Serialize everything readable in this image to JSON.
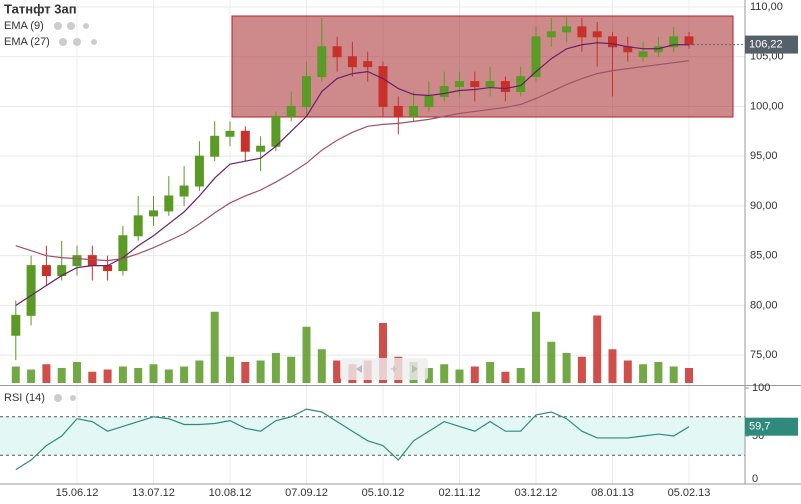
{
  "chart_data": [
    {
      "type": "candlestick",
      "title": "Татнфт 3ап",
      "categories": [
        null,
        null,
        null,
        null,
        "15.06.12",
        null,
        null,
        null,
        null,
        "13.07.12",
        null,
        null,
        null,
        null,
        "10.08.12",
        null,
        null,
        null,
        null,
        "07.09.12",
        null,
        null,
        null,
        null,
        "05.10.12",
        null,
        null,
        null,
        null,
        "02.11.12",
        null,
        null,
        null,
        null,
        "03.12.12",
        null,
        null,
        null,
        null,
        "08.01.13",
        null,
        null,
        null,
        null,
        "05.02.13"
      ],
      "open": [
        77,
        79,
        84,
        83,
        84,
        85,
        84,
        83.5,
        87,
        89,
        89.5,
        91,
        92,
        95,
        97,
        97.5,
        95.5,
        96,
        99,
        100,
        103,
        106,
        105,
        104.5,
        104,
        100,
        99,
        100,
        101,
        102,
        102.5,
        102,
        102.5,
        101.5,
        103,
        107,
        107.5,
        108,
        107.5,
        107,
        106,
        105,
        105.5,
        106,
        107
      ],
      "high": [
        80.5,
        85,
        86,
        86.5,
        86,
        86,
        85,
        88,
        91,
        91,
        93,
        94,
        96.5,
        98.5,
        98.5,
        98,
        97,
        99.5,
        101.5,
        104.5,
        108.9,
        107,
        106.5,
        105.5,
        104.5,
        101,
        101.5,
        102.5,
        103.5,
        103.5,
        103.5,
        104,
        103,
        104,
        108,
        108.9,
        109,
        108.9,
        108.5,
        107.5,
        107,
        106.5,
        107,
        108,
        107.5
      ],
      "low": [
        74.5,
        78,
        82,
        82.5,
        83,
        82.5,
        82.5,
        83,
        86.5,
        88,
        89,
        90,
        91.5,
        94.5,
        96,
        94.5,
        93.5,
        95.5,
        98.5,
        99,
        102.5,
        103.5,
        103,
        102.5,
        99,
        97.2,
        98.5,
        99.5,
        100.5,
        101,
        100.5,
        101,
        100.5,
        101,
        102.5,
        106,
        106.5,
        105.5,
        104,
        101,
        104.5,
        104.5,
        105,
        105.5,
        105.8
      ],
      "close": [
        79,
        84,
        83,
        84,
        85,
        84,
        83.5,
        87,
        89,
        89.5,
        91,
        92,
        95,
        97,
        97.5,
        95.5,
        96,
        99,
        100,
        103,
        106,
        105,
        104,
        104,
        100,
        99,
        100,
        101,
        102,
        102.5,
        102,
        102.5,
        101.5,
        103,
        107,
        107.5,
        108,
        107,
        107,
        106,
        105.5,
        105.5,
        106,
        107,
        106.22
      ],
      "up_color": "#5b9a24",
      "down_color": "#c8302a",
      "overlays": [
        {
          "name": "EMA (9)",
          "color": "#6b1f6b",
          "values": [
            80,
            81,
            82,
            83,
            83.8,
            84,
            84,
            84.8,
            86,
            87,
            88.2,
            89.4,
            91,
            92.8,
            94.2,
            94.5,
            94.8,
            96,
            97.5,
            99,
            101.5,
            102.8,
            103.3,
            103.5,
            102.8,
            101.8,
            101.2,
            101.1,
            101.3,
            101.6,
            101.7,
            101.9,
            101.8,
            102.1,
            103.5,
            104.8,
            105.8,
            106.2,
            106.4,
            106.3,
            106,
            105.8,
            105.8,
            106.2,
            106.2
          ]
        },
        {
          "name": "EMA (27)",
          "color": "#a0506e",
          "values": [
            86,
            85.5,
            85,
            84.8,
            84.7,
            84.6,
            84.5,
            84.7,
            85.2,
            85.8,
            86.5,
            87.2,
            88.2,
            89.3,
            90.3,
            91,
            91.6,
            92.4,
            93.3,
            94.3,
            95.6,
            96.6,
            97.4,
            98,
            98.2,
            98.3,
            98.5,
            98.7,
            99,
            99.3,
            99.5,
            99.7,
            99.9,
            100.2,
            100.8,
            101.5,
            102.2,
            102.8,
            103.3,
            103.6,
            103.8,
            104,
            104.2,
            104.4,
            104.6
          ]
        }
      ],
      "volume": {
        "axis": "y2",
        "values": [
          22,
          18,
          25,
          20,
          28,
          15,
          18,
          22,
          20,
          25,
          18,
          22,
          30,
          95,
          35,
          28,
          30,
          40,
          35,
          75,
          45,
          30,
          25,
          30,
          80,
          35,
          28,
          20,
          25,
          18,
          22,
          28,
          15,
          20,
          95,
          55,
          40,
          35,
          90,
          45,
          30,
          25,
          28,
          22,
          20
        ]
      },
      "ylim": [
        72.2,
        110.7
      ],
      "y2lim": [
        0,
        100
      ],
      "yticks": [
        {
          "value": 75,
          "label": "75,00"
        },
        {
          "value": 80,
          "label": "80,00"
        },
        {
          "value": 85,
          "label": "85,00"
        },
        {
          "value": 90,
          "label": "90,00"
        },
        {
          "value": 95,
          "label": "95,00"
        },
        {
          "value": 100,
          "label": "100,00"
        },
        {
          "value": 105,
          "label": "105,00"
        },
        {
          "value": 110,
          "label": "110,00"
        }
      ],
      "last": {
        "value": 106.22,
        "label": "106,22"
      },
      "grid": true
    },
    {
      "type": "line",
      "title": "RSI (14)",
      "color": "#2e8b7b",
      "values": [
        15,
        25,
        40,
        50,
        68,
        65,
        55,
        60,
        65,
        70,
        68,
        62,
        62,
        63,
        66,
        58,
        55,
        66,
        70,
        78,
        75,
        65,
        55,
        45,
        40,
        25,
        45,
        55,
        65,
        60,
        55,
        65,
        55,
        55,
        72,
        75,
        68,
        55,
        48,
        48,
        48,
        50,
        52,
        50,
        59.7
      ],
      "ylim": [
        0,
        100
      ],
      "yticks": [
        0,
        50,
        100
      ],
      "levels": [
        30,
        70
      ],
      "last": {
        "value": 59.7,
        "label": "59,7"
      }
    }
  ]
}
